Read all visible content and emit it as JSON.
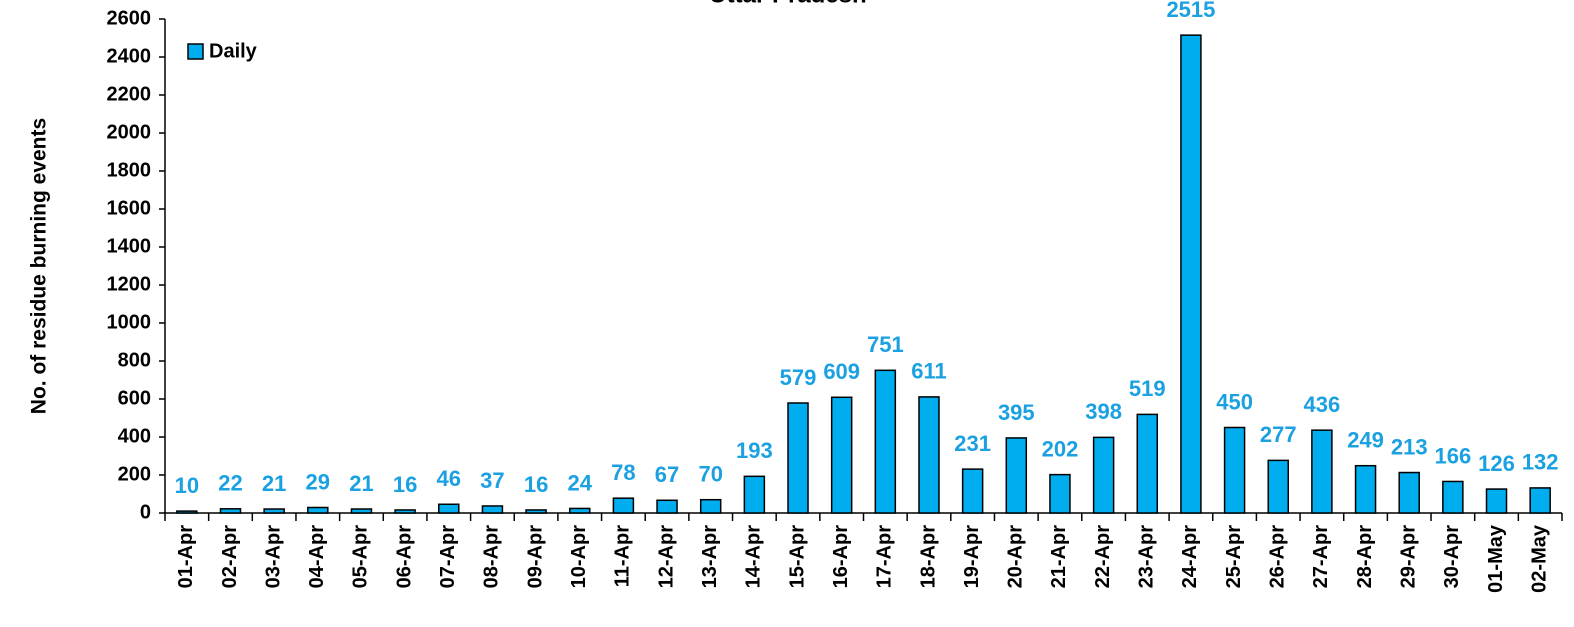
{
  "chart_data": {
    "type": "bar",
    "title": "Uttar Pradesh",
    "y_label": "No. of residue burning events",
    "categories": [
      "01-Apr",
      "02-Apr",
      "03-Apr",
      "04-Apr",
      "05-Apr",
      "06-Apr",
      "07-Apr",
      "08-Apr",
      "09-Apr",
      "10-Apr",
      "11-Apr",
      "12-Apr",
      "13-Apr",
      "14-Apr",
      "15-Apr",
      "16-Apr",
      "17-Apr",
      "18-Apr",
      "19-Apr",
      "20-Apr",
      "21-Apr",
      "22-Apr",
      "23-Apr",
      "24-Apr",
      "25-Apr",
      "26-Apr",
      "27-Apr",
      "28-Apr",
      "29-Apr",
      "30-Apr",
      "01-May",
      "02-May"
    ],
    "series": [
      {
        "name": "Daily",
        "color": "#00aeef",
        "label_color": "#1ba1e2",
        "values": [
          10,
          22,
          21,
          29,
          21,
          16,
          46,
          37,
          16,
          24,
          78,
          67,
          70,
          193,
          579,
          609,
          751,
          611,
          231,
          395,
          202,
          398,
          519,
          2515,
          450,
          277,
          436,
          249,
          213,
          166,
          126,
          132
        ]
      }
    ],
    "ylim": [
      0,
      2600
    ],
    "yticks": [
      0,
      200,
      400,
      600,
      800,
      1000,
      1200,
      1400,
      1600,
      1800,
      2000,
      2200,
      2400,
      2600
    ],
    "legend": "upper left"
  }
}
